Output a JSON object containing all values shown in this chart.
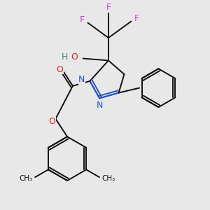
{
  "background_color": "#e8e8e8",
  "figsize": [
    3.0,
    3.0
  ],
  "dpi": 100,
  "colors": {
    "F": "#cc44cc",
    "O": "#dd2222",
    "N": "#2255cc",
    "H": "#448888",
    "C": "#111111",
    "bond": "#111111",
    "bg": "#e8e8e8"
  },
  "lw": 1.4,
  "fs": 9.0
}
